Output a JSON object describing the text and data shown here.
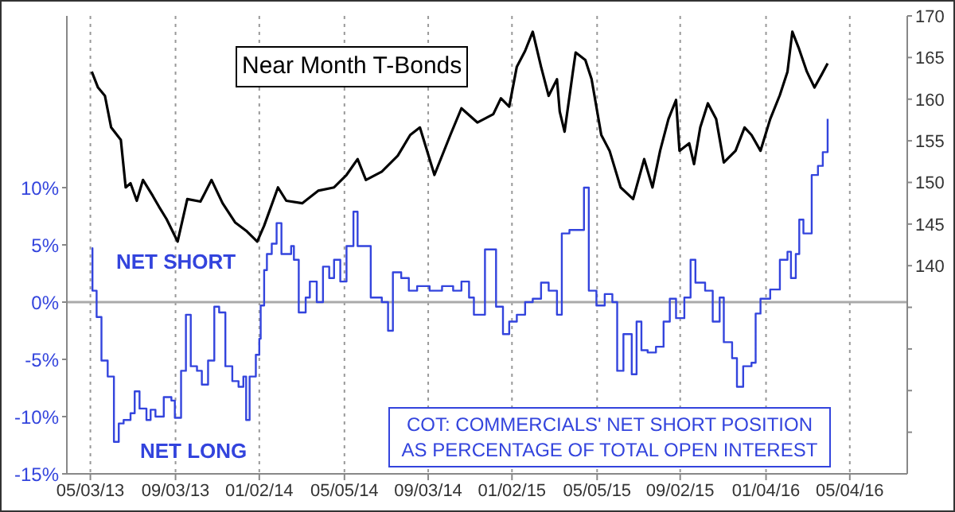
{
  "chart_data": {
    "type": "line",
    "annotations": [
      "NET SHORT",
      "NET LONG"
    ],
    "xlim": [
      "2013-03-30",
      "2016-07-26"
    ],
    "xticks": [
      {
        "value": "2013-05-03",
        "label": "05/03/13"
      },
      {
        "value": "2013-09-03",
        "label": "09/03/13"
      },
      {
        "value": "2014-01-02",
        "label": "01/02/14"
      },
      {
        "value": "2014-05-05",
        "label": "05/05/14"
      },
      {
        "value": "2014-09-03",
        "label": "09/03/14"
      },
      {
        "value": "2015-01-02",
        "label": "01/02/15"
      },
      {
        "value": "2015-05-05",
        "label": "05/05/15"
      },
      {
        "value": "2015-09-02",
        "label": "09/02/15"
      },
      {
        "value": "2016-01-04",
        "label": "01/04/16"
      },
      {
        "value": "2016-05-04",
        "label": "05/04/16"
      }
    ],
    "ylim": [
      -15,
      25
    ],
    "yticks": [
      {
        "value": -15,
        "label": "-15%"
      },
      {
        "value": -10,
        "label": "-10%"
      },
      {
        "value": -5,
        "label": "-5%"
      },
      {
        "value": 0,
        "label": "0%"
      },
      {
        "value": 5,
        "label": "5%"
      },
      {
        "value": 10,
        "label": "10%"
      }
    ],
    "y2lim": [
      115,
      170
    ],
    "y2ticks": [
      {
        "value": 120,
        "label": null
      },
      {
        "value": 125,
        "label": null
      },
      {
        "value": 130,
        "label": null
      },
      {
        "value": 135,
        "label": null
      },
      140,
      145,
      150,
      155,
      160,
      165,
      170
    ],
    "grid": "x",
    "legend": false,
    "ref_lines": [
      {
        "axis": "y",
        "value": 0,
        "color": "#aaaaaa"
      }
    ],
    "series": [
      {
        "name": "COT: COMMERCIALS' NET SHORT POSITION AS PERCENTAGE OF TOTAL OPEN INTEREST",
        "type": "step",
        "color": "#3344dd",
        "x": [
          "2013-05-05",
          "2013-05-06",
          "2013-05-12",
          "2013-05-19",
          "2013-05-28",
          "2013-06-06",
          "2013-06-13",
          "2013-06-20",
          "2013-06-30",
          "2013-07-06",
          "2013-07-13",
          "2013-07-23",
          "2013-07-29",
          "2013-08-05",
          "2013-08-17",
          "2013-08-28",
          "2013-09-02",
          "2013-09-11",
          "2013-09-18",
          "2013-09-25",
          "2013-10-04",
          "2013-10-11",
          "2013-10-20",
          "2013-10-29",
          "2013-11-05",
          "2013-11-14",
          "2013-11-24",
          "2013-12-03",
          "2013-12-10",
          "2013-12-14",
          "2013-12-19",
          "2013-12-28",
          "2014-01-02",
          "2014-01-04",
          "2014-01-09",
          "2014-01-13",
          "2014-01-20",
          "2014-01-27",
          "2014-02-03",
          "2014-02-17",
          "2014-02-21",
          "2014-02-28",
          "2014-03-10",
          "2014-03-16",
          "2014-03-26",
          "2014-04-04",
          "2014-04-13",
          "2014-04-20",
          "2014-04-29",
          "2014-05-08",
          "2014-05-18",
          "2014-05-24",
          "2014-06-12",
          "2014-06-28",
          "2014-07-07",
          "2014-07-14",
          "2014-07-26",
          "2014-08-06",
          "2014-08-18",
          "2014-09-05",
          "2014-09-23",
          "2014-10-09",
          "2014-10-21",
          "2014-11-01",
          "2014-11-08",
          "2014-11-24",
          "2014-12-10",
          "2014-12-20",
          "2014-12-29",
          "2015-01-09",
          "2015-01-21",
          "2015-02-01",
          "2015-02-13",
          "2015-02-24",
          "2015-03-08",
          "2015-03-15",
          "2015-03-26",
          "2015-04-16",
          "2015-04-23",
          "2015-05-04",
          "2015-05-16",
          "2015-05-27",
          "2015-06-03",
          "2015-06-12",
          "2015-06-24",
          "2015-07-01",
          "2015-07-08",
          "2015-07-17",
          "2015-07-29",
          "2015-08-09",
          "2015-08-18",
          "2015-08-27",
          "2015-09-08",
          "2015-09-17",
          "2015-09-24",
          "2015-10-08",
          "2015-10-19",
          "2015-10-29",
          "2015-11-04",
          "2015-11-16",
          "2015-11-23",
          "2015-12-02",
          "2015-12-14",
          "2015-12-20",
          "2015-12-27",
          "2016-01-10",
          "2016-01-24",
          "2016-02-04",
          "2016-02-09",
          "2016-02-16",
          "2016-02-21",
          "2016-02-27",
          "2016-03-10",
          "2016-03-19",
          "2016-03-26",
          "2016-04-02"
        ],
        "values": [
          4.7,
          1.0,
          -1.3,
          -5.1,
          -6.5,
          -12.2,
          -10.6,
          -10.3,
          -9.7,
          -7.8,
          -9.3,
          -10.3,
          -9.4,
          -10.0,
          -8.3,
          -8.6,
          -10.1,
          -6.0,
          -1.1,
          -5.6,
          -6.0,
          -7.2,
          -5.1,
          -0.4,
          -0.9,
          -5.6,
          -6.9,
          -7.4,
          -6.5,
          -10.3,
          -6.5,
          -4.6,
          -3.2,
          -0.3,
          2.8,
          4.2,
          5.1,
          6.9,
          4.2,
          4.9,
          3.7,
          -0.9,
          0.4,
          1.8,
          0.0,
          3.1,
          2.1,
          3.7,
          1.8,
          4.9,
          7.9,
          4.9,
          0.4,
          0.0,
          -2.5,
          2.6,
          2.1,
          1.0,
          1.4,
          1.0,
          1.4,
          1.0,
          1.8,
          0.4,
          -1.1,
          4.6,
          -0.4,
          -2.8,
          -1.7,
          -1.1,
          0.0,
          0.3,
          1.7,
          1.0,
          -1.1,
          6.0,
          6.3,
          10.0,
          1.0,
          -0.3,
          0.7,
          0.0,
          -6.0,
          -2.8,
          -6.3,
          -1.7,
          -4.2,
          -4.4,
          -3.9,
          -1.7,
          0.3,
          -1.4,
          0.4,
          3.7,
          1.7,
          1.0,
          -1.7,
          0.4,
          -3.5,
          -4.9,
          -7.4,
          -5.6,
          -5.3,
          -1.0,
          0.3,
          1.1,
          3.7,
          4.4,
          2.1,
          4.2,
          7.2,
          6.0,
          11.1,
          11.9,
          13.1,
          16.0
        ]
      },
      {
        "name": "Near Month T-Bonds",
        "type": "line",
        "axis": "y2",
        "color": "#000000",
        "x": [
          "2013-05-05",
          "2013-05-14",
          "2013-05-24",
          "2013-06-02",
          "2013-06-16",
          "2013-06-23",
          "2013-06-30",
          "2013-07-09",
          "2013-07-18",
          "2013-08-01",
          "2013-08-10",
          "2013-08-21",
          "2013-09-06",
          "2013-09-20",
          "2013-10-09",
          "2013-10-25",
          "2013-11-10",
          "2013-11-28",
          "2013-12-14",
          "2013-12-30",
          "2014-01-09",
          "2014-01-29",
          "2014-02-10",
          "2014-03-05",
          "2014-03-28",
          "2014-04-20",
          "2014-05-08",
          "2014-05-24",
          "2014-06-05",
          "2014-06-28",
          "2014-07-21",
          "2014-08-08",
          "2014-08-22",
          "2014-09-12",
          "2014-10-05",
          "2014-10-21",
          "2014-11-13",
          "2014-12-06",
          "2014-12-17",
          "2014-12-29",
          "2015-01-09",
          "2015-01-21",
          "2015-02-01",
          "2015-02-13",
          "2015-02-24",
          "2015-03-08",
          "2015-03-12",
          "2015-03-19",
          "2015-03-31",
          "2015-04-04",
          "2015-04-18",
          "2015-04-27",
          "2015-05-11",
          "2015-05-23",
          "2015-06-08",
          "2015-06-26",
          "2015-07-12",
          "2015-07-24",
          "2015-08-04",
          "2015-08-16",
          "2015-08-27",
          "2015-09-01",
          "2015-09-15",
          "2015-09-22",
          "2015-10-01",
          "2015-10-12",
          "2015-10-24",
          "2015-11-04",
          "2015-11-21",
          "2015-12-04",
          "2015-12-14",
          "2015-12-27",
          "2016-01-10",
          "2016-01-24",
          "2016-02-04",
          "2016-02-11",
          "2016-02-20",
          "2016-03-03",
          "2016-03-14",
          "2016-03-24",
          "2016-04-02"
        ],
        "values": [
          163.3,
          161.4,
          160.4,
          156.6,
          155.1,
          149.4,
          149.9,
          147.8,
          150.3,
          148.4,
          147.1,
          145.6,
          142.9,
          148.0,
          147.7,
          150.3,
          147.5,
          145.2,
          144.2,
          142.9,
          144.8,
          149.4,
          147.8,
          147.5,
          149.0,
          149.4,
          150.9,
          152.8,
          150.3,
          151.3,
          153.2,
          155.7,
          156.6,
          150.9,
          155.7,
          158.9,
          157.2,
          158.2,
          160.1,
          159.1,
          163.9,
          165.8,
          168.1,
          163.9,
          160.4,
          162.4,
          158.5,
          156.1,
          163.3,
          165.6,
          164.7,
          162.4,
          155.7,
          153.8,
          149.4,
          148.0,
          152.8,
          149.4,
          153.8,
          157.6,
          159.9,
          153.8,
          154.7,
          152.2,
          156.6,
          159.5,
          157.6,
          152.4,
          153.8,
          156.6,
          155.7,
          153.8,
          157.6,
          160.5,
          163.3,
          168.1,
          166.2,
          163.3,
          161.4,
          162.9,
          164.3
        ]
      }
    ]
  }
}
